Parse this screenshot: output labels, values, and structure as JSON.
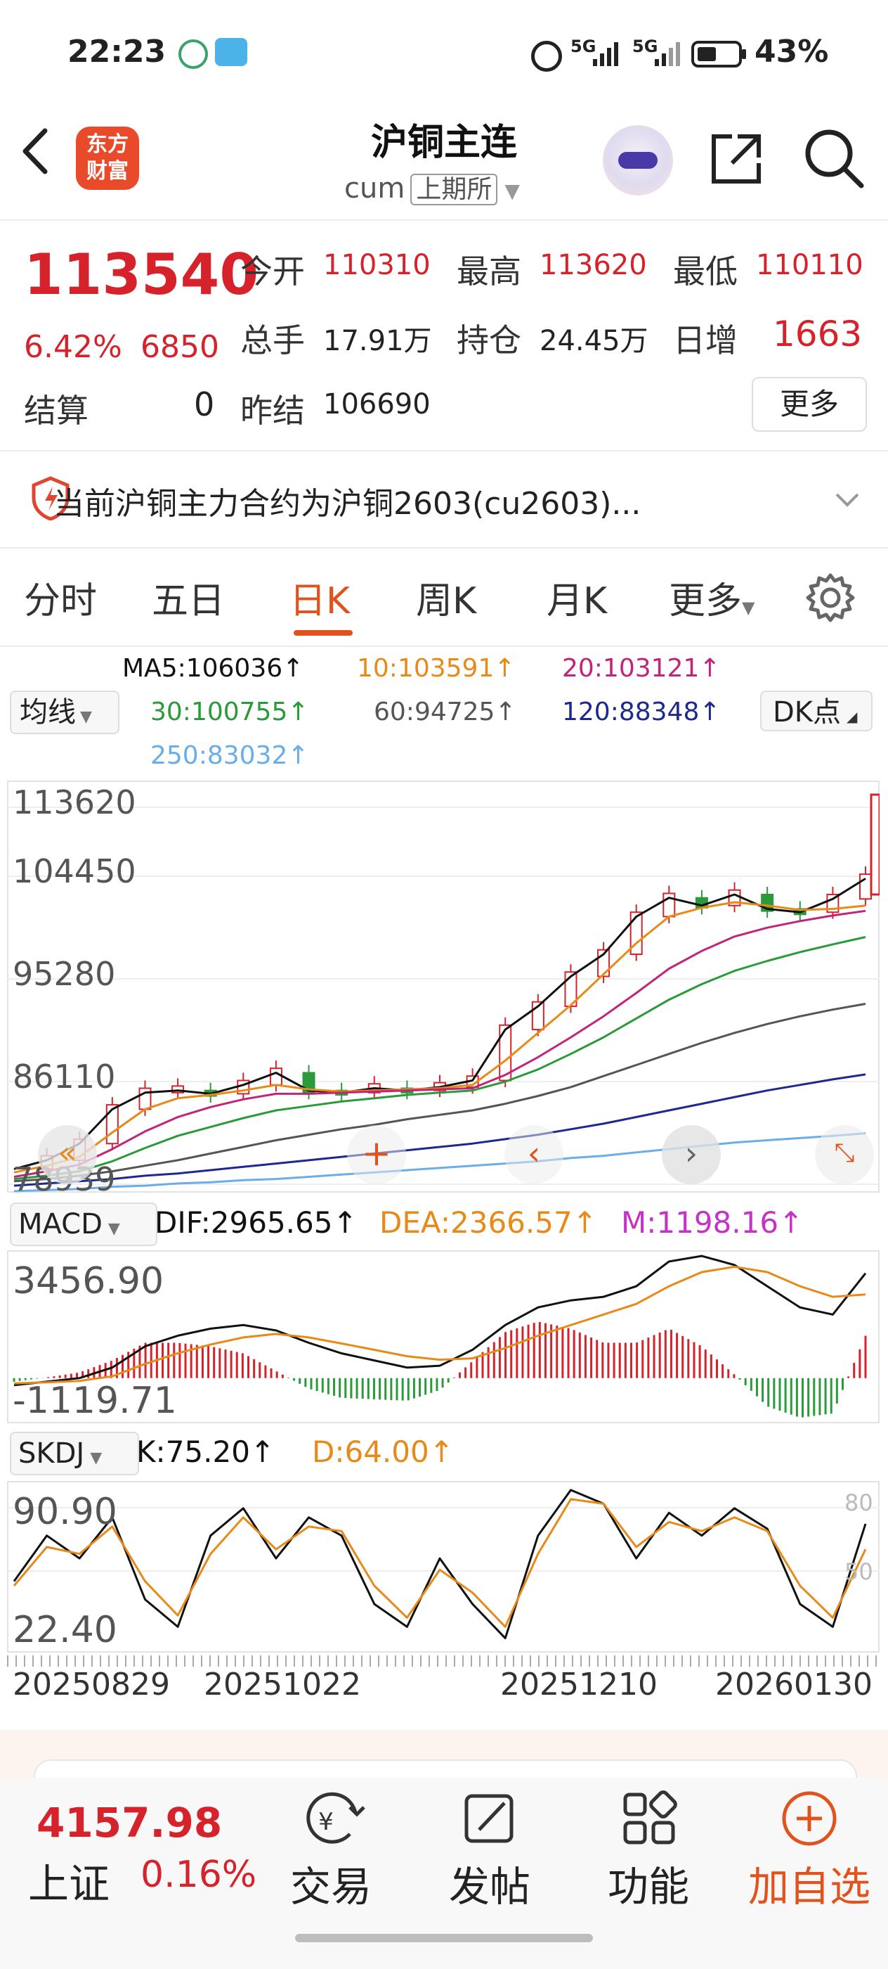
{
  "status_bar": {
    "time": "22:23",
    "network1": "5G",
    "network2": "5G",
    "battery": "43%"
  },
  "header": {
    "title": "沪铜主连",
    "symbol": "cum",
    "exchange": "上期所",
    "logo_line1": "东方",
    "logo_line2": "财富"
  },
  "quote": {
    "price": "113540",
    "change_pct": "6.42%",
    "change": "6850",
    "open_label": "今开",
    "open": "110310",
    "high_label": "最高",
    "high": "113620",
    "low_label": "最低",
    "low": "110110",
    "volume_label": "总手",
    "volume": "17.91万",
    "oi_label": "持仓",
    "oi": "24.45万",
    "daily_inc_label": "日增",
    "daily_inc": "1663",
    "settle_label": "结算",
    "settle": "0",
    "prev_settle_label": "昨结",
    "prev_settle": "106690",
    "more_label": "更多"
  },
  "notice": {
    "text": "当前沪铜主力合约为沪铜2603(cu2603)..."
  },
  "tabs": [
    {
      "label": "分时"
    },
    {
      "label": "五日"
    },
    {
      "label": "日K"
    },
    {
      "label": "周K"
    },
    {
      "label": "月K"
    },
    {
      "label": "更多"
    }
  ],
  "ma_legend": {
    "selector": "均线",
    "dk": "DK点",
    "ma5": "MA5:106036↑",
    "ma10": "10:103591↑",
    "ma20": "20:103121↑",
    "ma30": "30:100755↑",
    "ma60": "60:94725↑",
    "ma120": "120:88348↑",
    "ma250": "250:83032↑"
  },
  "colors": {
    "up": "#d6232b",
    "down": "#2a9a3a",
    "ma5": "#111111",
    "ma10": "#e88a1a",
    "ma20": "#c2247a",
    "ma30": "#2a9a3a",
    "ma60": "#555555",
    "ma120": "#1c2a8f",
    "ma250": "#6aaee8",
    "accent": "#e0531d"
  },
  "macd": {
    "selector": "MACD",
    "dif": "DIF:2965.65↑",
    "dea": "DEA:2366.57↑",
    "m": "M:1198.16↑",
    "top": "3456.90",
    "bottom": "-1119.71"
  },
  "skdj": {
    "selector": "SKDJ",
    "k": "K:75.20↑",
    "d": "D:64.00↑",
    "top": "90.90",
    "bottom": "22.40",
    "level80": "80",
    "level50": "50"
  },
  "date_axis": [
    "20250829",
    "20251022",
    "20251210",
    "20260130"
  ],
  "chart_data": [
    {
      "type": "line",
      "name": "candlestick-price",
      "y_ticks": [
        "113620",
        "104450",
        "95280",
        "86110",
        "78939"
      ],
      "ylim": [
        78939,
        113620
      ],
      "series": [
        {
          "name": "MA5",
          "values": [
            79800,
            80600,
            82100,
            85200,
            86700,
            86900,
            86600,
            87400,
            88500,
            86900,
            86700,
            87100,
            86900,
            87200,
            87800,
            92400,
            94500,
            97200,
            99200,
            102600,
            104300,
            103600,
            104600,
            103300,
            103000,
            104200,
            106036
          ]
        },
        {
          "name": "MA10",
          "values": [
            79500,
            80100,
            80900,
            83100,
            85200,
            86200,
            86500,
            86900,
            87400,
            87000,
            86800,
            86900,
            87000,
            87100,
            87400,
            89600,
            92100,
            94600,
            97400,
            100200,
            102600,
            103400,
            103900,
            103600,
            103200,
            103300,
            103591
          ]
        },
        {
          "name": "MA20",
          "values": [
            79100,
            79600,
            80200,
            81600,
            83200,
            84500,
            85400,
            86100,
            86600,
            86600,
            86700,
            86800,
            86900,
            87000,
            87100,
            88300,
            89900,
            91700,
            93600,
            95700,
            97900,
            99500,
            100800,
            101600,
            102200,
            102700,
            103121
          ]
        },
        {
          "name": "MA30",
          "values": [
            78900,
            79200,
            79600,
            80500,
            81700,
            82800,
            83600,
            84400,
            85100,
            85500,
            85900,
            86200,
            86500,
            86700,
            86900,
            87700,
            88800,
            90200,
            91700,
            93400,
            95100,
            96500,
            97700,
            98600,
            99400,
            100100,
            100755
          ]
        },
        {
          "name": "MA60",
          "values": [
            78700,
            78900,
            79200,
            79600,
            80100,
            80600,
            81200,
            81800,
            82400,
            82900,
            83400,
            83800,
            84300,
            84700,
            85100,
            85700,
            86400,
            87200,
            88200,
            89200,
            90200,
            91200,
            92100,
            92900,
            93600,
            94200,
            94725
          ]
        },
        {
          "name": "MA120",
          "values": [
            78300,
            78500,
            78700,
            78900,
            79200,
            79400,
            79700,
            80000,
            80300,
            80600,
            80900,
            81200,
            81500,
            81800,
            82100,
            82500,
            82900,
            83400,
            83900,
            84500,
            85100,
            85700,
            86300,
            86900,
            87400,
            87900,
            88348
          ]
        },
        {
          "name": "MA250",
          "values": [
            77800,
            77900,
            78000,
            78200,
            78300,
            78500,
            78600,
            78800,
            78900,
            79100,
            79300,
            79500,
            79700,
            79900,
            80100,
            80300,
            80500,
            80800,
            81000,
            81300,
            81600,
            81900,
            82200,
            82400,
            82600,
            82800,
            83032
          ]
        }
      ]
    },
    {
      "type": "line",
      "name": "macd",
      "ylim": [
        -1119.71,
        3456.9
      ],
      "series": [
        {
          "name": "DIF",
          "values": [
            -200,
            -100,
            0,
            300,
            900,
            1200,
            1400,
            1500,
            1350,
            1000,
            700,
            500,
            300,
            350,
            800,
            1500,
            2000,
            2200,
            2300,
            2600,
            3300,
            3456,
            3200,
            2600,
            2000,
            1800,
            2965.65
          ]
        },
        {
          "name": "DEA",
          "values": [
            -150,
            -120,
            -80,
            50,
            400,
            700,
            950,
            1150,
            1250,
            1150,
            980,
            800,
            620,
            520,
            560,
            850,
            1200,
            1500,
            1800,
            2100,
            2600,
            3000,
            3150,
            3000,
            2600,
            2300,
            2366.57
          ]
        },
        {
          "name": "M",
          "values": [
            -100,
            20,
            160,
            500,
            1000,
            1000,
            900,
            700,
            200,
            -300,
            -560,
            -600,
            -640,
            -340,
            480,
            1300,
            1600,
            1400,
            1000,
            1000,
            1400,
            900,
            100,
            -800,
            -1119,
            -1000,
            1198.16
          ]
        }
      ]
    },
    {
      "type": "line",
      "name": "skdj",
      "ylim": [
        22.4,
        90.9
      ],
      "series": [
        {
          "name": "K",
          "values": [
            50,
            70,
            60,
            78,
            42,
            30,
            70,
            82,
            60,
            78,
            70,
            40,
            30,
            60,
            40,
            25,
            70,
            90,
            84,
            60,
            80,
            70,
            82,
            73,
            40,
            30,
            75.2
          ]
        },
        {
          "name": "D",
          "values": [
            48,
            65,
            62,
            74,
            50,
            35,
            62,
            78,
            64,
            74,
            72,
            48,
            34,
            55,
            45,
            30,
            62,
            86,
            84,
            65,
            76,
            72,
            78,
            72,
            48,
            34,
            64.0
          ]
        }
      ]
    }
  ],
  "bottom_nav": {
    "index_value": "4157.98",
    "index_name": "上证",
    "index_change": "0.16%",
    "trade": "交易",
    "post": "发帖",
    "features": "功能",
    "add_watch": "加自选"
  }
}
